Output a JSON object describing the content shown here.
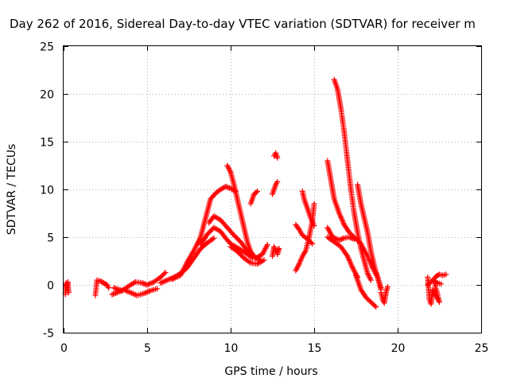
{
  "chart_data": {
    "type": "scatter",
    "title": "Day 262 of 2016, Sidereal Day-to-day VTEC variation (SDTVAR) for receiver m",
    "xlabel": "GPS time / hours",
    "ylabel": "SDTVAR / TECUs",
    "xlim": [
      0,
      25
    ],
    "ylim": [
      -5,
      25
    ],
    "xticks": [
      0,
      5,
      10,
      15,
      20,
      25
    ],
    "yticks": [
      -5,
      0,
      5,
      10,
      15,
      20,
      25
    ],
    "grid": true,
    "marker": "+",
    "color": "#ff0000",
    "segments": [
      {
        "name": "arc-a",
        "points": [
          [
            0.1,
            -1
          ],
          [
            0.15,
            0.2
          ],
          [
            0.2,
            -0.5
          ],
          [
            0.25,
            0.3
          ],
          [
            0.3,
            -0.8
          ]
        ]
      },
      {
        "name": "arc-b",
        "points": [
          [
            1.9,
            -1.1
          ],
          [
            2.0,
            0.5
          ],
          [
            2.2,
            0.4
          ],
          [
            2.4,
            0.2
          ],
          [
            2.6,
            0
          ],
          [
            2.7,
            -0.3
          ]
        ]
      },
      {
        "name": "arc-c",
        "points": [
          [
            2.9,
            -1
          ],
          [
            3.2,
            -0.8
          ],
          [
            3.6,
            -0.5
          ],
          [
            4.0,
            -0.8
          ],
          [
            4.4,
            -1.1
          ],
          [
            4.8,
            -0.9
          ],
          [
            5.2,
            -0.6
          ],
          [
            5.6,
            -0.4
          ]
        ]
      },
      {
        "name": "arc-d",
        "points": [
          [
            3.0,
            -0.3
          ],
          [
            3.5,
            -0.6
          ],
          [
            4.0,
            0
          ],
          [
            4.3,
            0.3
          ],
          [
            4.7,
            0.2
          ],
          [
            5.0,
            0
          ],
          [
            5.4,
            0.3
          ],
          [
            5.8,
            0.8
          ],
          [
            6.1,
            1.3
          ]
        ]
      },
      {
        "name": "arc-e",
        "points": [
          [
            5.8,
            0.2
          ],
          [
            6.2,
            0.5
          ],
          [
            6.6,
            0.8
          ],
          [
            7.0,
            1.2
          ],
          [
            7.4,
            1.8
          ],
          [
            7.8,
            2.8
          ],
          [
            8.2,
            3.8
          ],
          [
            8.6,
            4.4
          ],
          [
            9.0,
            4.9
          ]
        ]
      },
      {
        "name": "arc-f",
        "points": [
          [
            6.5,
            0.6
          ],
          [
            7.0,
            1.0
          ],
          [
            7.4,
            2.4
          ],
          [
            7.8,
            3.6
          ],
          [
            8.2,
            5.0
          ],
          [
            8.5,
            7.0
          ],
          [
            8.8,
            9.0
          ],
          [
            9.1,
            9.6
          ],
          [
            9.4,
            10.0
          ],
          [
            9.7,
            10.3
          ],
          [
            10.0,
            10.1
          ],
          [
            10.3,
            9.8
          ]
        ]
      },
      {
        "name": "arc-g",
        "points": [
          [
            8.2,
            4.2
          ],
          [
            8.6,
            5.3
          ],
          [
            9.0,
            6.0
          ],
          [
            9.4,
            5.6
          ],
          [
            9.7,
            4.9
          ],
          [
            10.0,
            4.3
          ],
          [
            10.5,
            3.8
          ],
          [
            11.0,
            3.2
          ],
          [
            11.3,
            2.8
          ]
        ]
      },
      {
        "name": "arc-h",
        "points": [
          [
            8.7,
            6.5
          ],
          [
            9.0,
            7.2
          ],
          [
            9.4,
            6.8
          ],
          [
            9.8,
            6.0
          ],
          [
            10.2,
            5.2
          ],
          [
            10.6,
            4.5
          ],
          [
            11.0,
            3.6
          ],
          [
            11.4,
            2.9
          ],
          [
            11.8,
            2.6
          ]
        ]
      },
      {
        "name": "arc-i",
        "points": [
          [
            9.8,
            12.5
          ],
          [
            10.0,
            11.8
          ],
          [
            10.2,
            10.5
          ],
          [
            10.4,
            9.0
          ],
          [
            10.6,
            7.5
          ],
          [
            10.8,
            6.0
          ],
          [
            11.0,
            4.5
          ],
          [
            11.2,
            3.5
          ],
          [
            11.5,
            2.8
          ],
          [
            11.9,
            3.2
          ],
          [
            12.2,
            4.2
          ]
        ]
      },
      {
        "name": "arc-j",
        "points": [
          [
            10.0,
            4.0
          ],
          [
            10.4,
            3.5
          ],
          [
            10.8,
            2.8
          ],
          [
            11.2,
            2.3
          ],
          [
            11.6,
            2.2
          ],
          [
            12.0,
            2.6
          ]
        ]
      },
      {
        "name": "arc-k",
        "points": [
          [
            11.2,
            8.5
          ],
          [
            11.4,
            9.5
          ],
          [
            11.6,
            9.8
          ]
        ]
      },
      {
        "name": "arc-l",
        "points": [
          [
            12.5,
            9.5
          ],
          [
            12.6,
            10.0
          ],
          [
            12.7,
            10.5
          ],
          [
            12.8,
            10.8
          ]
        ]
      },
      {
        "name": "arc-m",
        "points": [
          [
            12.6,
            13.5
          ],
          [
            12.7,
            13.8
          ],
          [
            12.8,
            13.3
          ]
        ]
      },
      {
        "name": "arc-n",
        "points": [
          [
            12.5,
            3.0
          ],
          [
            12.6,
            4.0
          ],
          [
            12.7,
            3.5
          ],
          [
            12.9,
            3.8
          ],
          [
            12.8,
            3.2
          ]
        ]
      },
      {
        "name": "arc-o",
        "points": [
          [
            13.9,
            1.5
          ],
          [
            14.1,
            2.2
          ],
          [
            14.3,
            3.0
          ],
          [
            14.5,
            3.6
          ],
          [
            14.7,
            5.0
          ],
          [
            14.9,
            6.8
          ],
          [
            15.0,
            8.5
          ]
        ]
      },
      {
        "name": "arc-p",
        "points": [
          [
            13.9,
            6.3
          ],
          [
            14.1,
            5.8
          ],
          [
            14.3,
            5.2
          ],
          [
            14.6,
            4.8
          ],
          [
            14.9,
            4.3
          ]
        ]
      },
      {
        "name": "arc-q",
        "points": [
          [
            14.3,
            9.8
          ],
          [
            14.4,
            9.0
          ],
          [
            14.6,
            8.0
          ],
          [
            14.8,
            7.0
          ],
          [
            15.0,
            6.2
          ]
        ]
      },
      {
        "name": "arc-r",
        "points": [
          [
            15.8,
            13.0
          ],
          [
            16.0,
            11.0
          ],
          [
            16.2,
            9.0
          ],
          [
            16.5,
            7.5
          ],
          [
            16.8,
            6.3
          ],
          [
            17.1,
            5.5
          ],
          [
            17.4,
            5.0
          ],
          [
            17.8,
            4.3
          ],
          [
            18.2,
            3.0
          ],
          [
            18.5,
            1.8
          ],
          [
            18.8,
            0.8
          ],
          [
            19.0,
            -0.3
          ]
        ]
      },
      {
        "name": "arc-s",
        "points": [
          [
            16.2,
            21.5
          ],
          [
            16.4,
            20.5
          ],
          [
            16.6,
            18.5
          ],
          [
            16.8,
            16.0
          ],
          [
            17.0,
            13.0
          ],
          [
            17.2,
            10.0
          ],
          [
            17.4,
            7.5
          ],
          [
            17.6,
            5.5
          ],
          [
            17.8,
            3.8
          ],
          [
            18.0,
            2.5
          ],
          [
            18.2,
            1.2
          ],
          [
            18.4,
            0.5
          ]
        ]
      },
      {
        "name": "arc-t",
        "points": [
          [
            15.8,
            6.0
          ],
          [
            16.1,
            5.0
          ],
          [
            16.5,
            4.7
          ],
          [
            16.8,
            4.9
          ],
          [
            17.1,
            5.0
          ],
          [
            17.4,
            4.8
          ]
        ]
      },
      {
        "name": "arc-u",
        "points": [
          [
            15.8,
            5.0
          ],
          [
            16.2,
            4.5
          ],
          [
            16.6,
            4.0
          ],
          [
            17.0,
            3.0
          ],
          [
            17.3,
            1.8
          ],
          [
            17.6,
            0.8
          ]
        ]
      },
      {
        "name": "arc-v",
        "points": [
          [
            17.6,
            10.5
          ],
          [
            17.8,
            8.5
          ],
          [
            18.0,
            7.0
          ],
          [
            18.2,
            5.5
          ],
          [
            18.4,
            3.5
          ],
          [
            18.6,
            2.0
          ],
          [
            18.8,
            0.8
          ],
          [
            19.0,
            -0.5
          ]
        ]
      },
      {
        "name": "arc-w",
        "points": [
          [
            17.5,
            1.0
          ],
          [
            17.8,
            -0.5
          ],
          [
            18.1,
            -1.3
          ],
          [
            18.4,
            -1.8
          ],
          [
            18.7,
            -2.3
          ]
        ]
      },
      {
        "name": "arc-x",
        "points": [
          [
            19.0,
            -0.8
          ],
          [
            19.1,
            -1.5
          ],
          [
            19.2,
            -1.9
          ],
          [
            19.3,
            -0.8
          ],
          [
            19.4,
            -0.2
          ]
        ]
      },
      {
        "name": "arc-y",
        "points": [
          [
            21.8,
            0.8
          ],
          [
            21.9,
            -1.5
          ],
          [
            22.0,
            -2.0
          ],
          [
            22.1,
            -0.5
          ],
          [
            22.3,
            -1.2
          ],
          [
            22.5,
            -1.8
          ],
          [
            22.2,
            0.3
          ]
        ]
      },
      {
        "name": "arc-z",
        "points": [
          [
            22.1,
            0.5
          ],
          [
            22.3,
            0.9
          ],
          [
            22.5,
            1.1
          ],
          [
            22.7,
            1.0
          ],
          [
            22.9,
            1.1
          ]
        ]
      },
      {
        "name": "arc-aa",
        "points": [
          [
            21.8,
            0.0
          ],
          [
            22.1,
            0.5
          ],
          [
            22.4,
            0.2
          ],
          [
            22.6,
            0.1
          ]
        ]
      }
    ]
  }
}
